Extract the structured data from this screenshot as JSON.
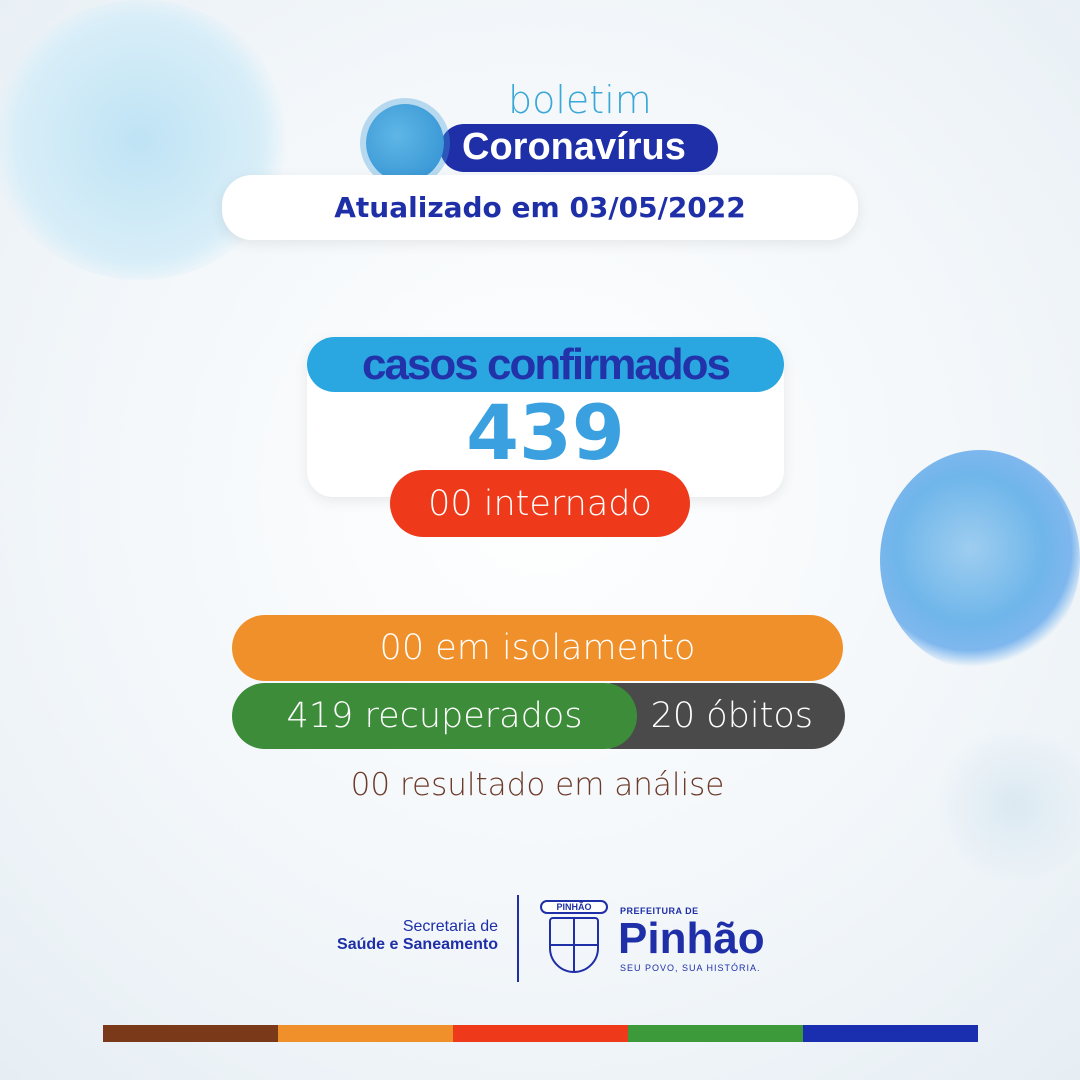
{
  "header": {
    "kicker": "boletim",
    "title": "Coronavírus",
    "updated": "Atualizado em 03/05/2022"
  },
  "main": {
    "confirmed_label": "casos confirmados",
    "confirmed_value": "439",
    "hospitalized": "00 internado",
    "isolation": "00 em isolamento",
    "recovered": "419 recuperados",
    "deaths": "20 óbitos",
    "pending": "00 resultado em análise"
  },
  "footer": {
    "dept_line1": "Secretaria de",
    "dept_line2": "Saúde e Saneamento",
    "crest_text": "PINHÃO",
    "city_prefix": "PREFEITURA DE",
    "city_name": "Pinhão",
    "slogan": "SEU POVO, SUA HISTÓRIA."
  },
  "colors": {
    "navy": "#1e2fa8",
    "blue": "#2aa6e0",
    "red": "#ee3a1a",
    "orange": "#f0902a",
    "green": "#3c8c3a",
    "gray": "#4a4a4a",
    "brown": "#7a3a1a"
  }
}
